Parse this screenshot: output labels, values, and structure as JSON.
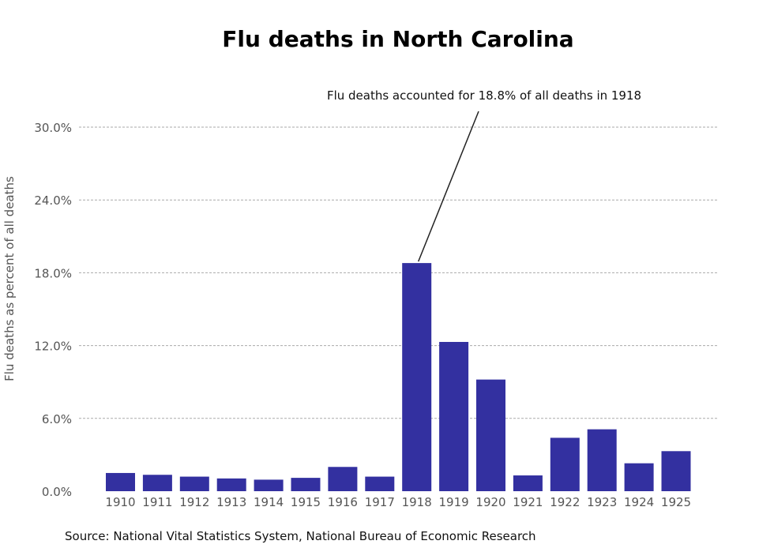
{
  "chart_data": {
    "type": "bar",
    "title": "Flu deaths in North Carolina",
    "xlabel": "",
    "ylabel": "Flu deaths as percent of all deaths",
    "categories": [
      "1910",
      "1911",
      "1912",
      "1913",
      "1914",
      "1915",
      "1916",
      "1917",
      "1918",
      "1919",
      "1920",
      "1921",
      "1922",
      "1923",
      "1924",
      "1925"
    ],
    "series": [
      {
        "values": [
          1.5,
          1.35,
          1.2,
          1.05,
          0.95,
          1.1,
          2.0,
          1.2,
          18.8,
          12.3,
          9.2,
          1.3,
          4.4,
          5.1,
          2.3,
          3.3
        ]
      }
    ],
    "ylim": [
      0,
      30
    ],
    "yticks": [
      0,
      6,
      12,
      18,
      24,
      30
    ],
    "ytick_labels": [
      "0.0%",
      "6.0%",
      "12.0%",
      "18.0%",
      "24.0%",
      "30.0%"
    ],
    "grid": true,
    "bar_color": "#3330a0",
    "annotation": {
      "text": "Flu deaths accounted for 18.8% of all deaths in 1918",
      "category": "1918",
      "value": 18.8
    },
    "source": "Source: National Vital Statistics System, National Bureau of Economic Research"
  }
}
